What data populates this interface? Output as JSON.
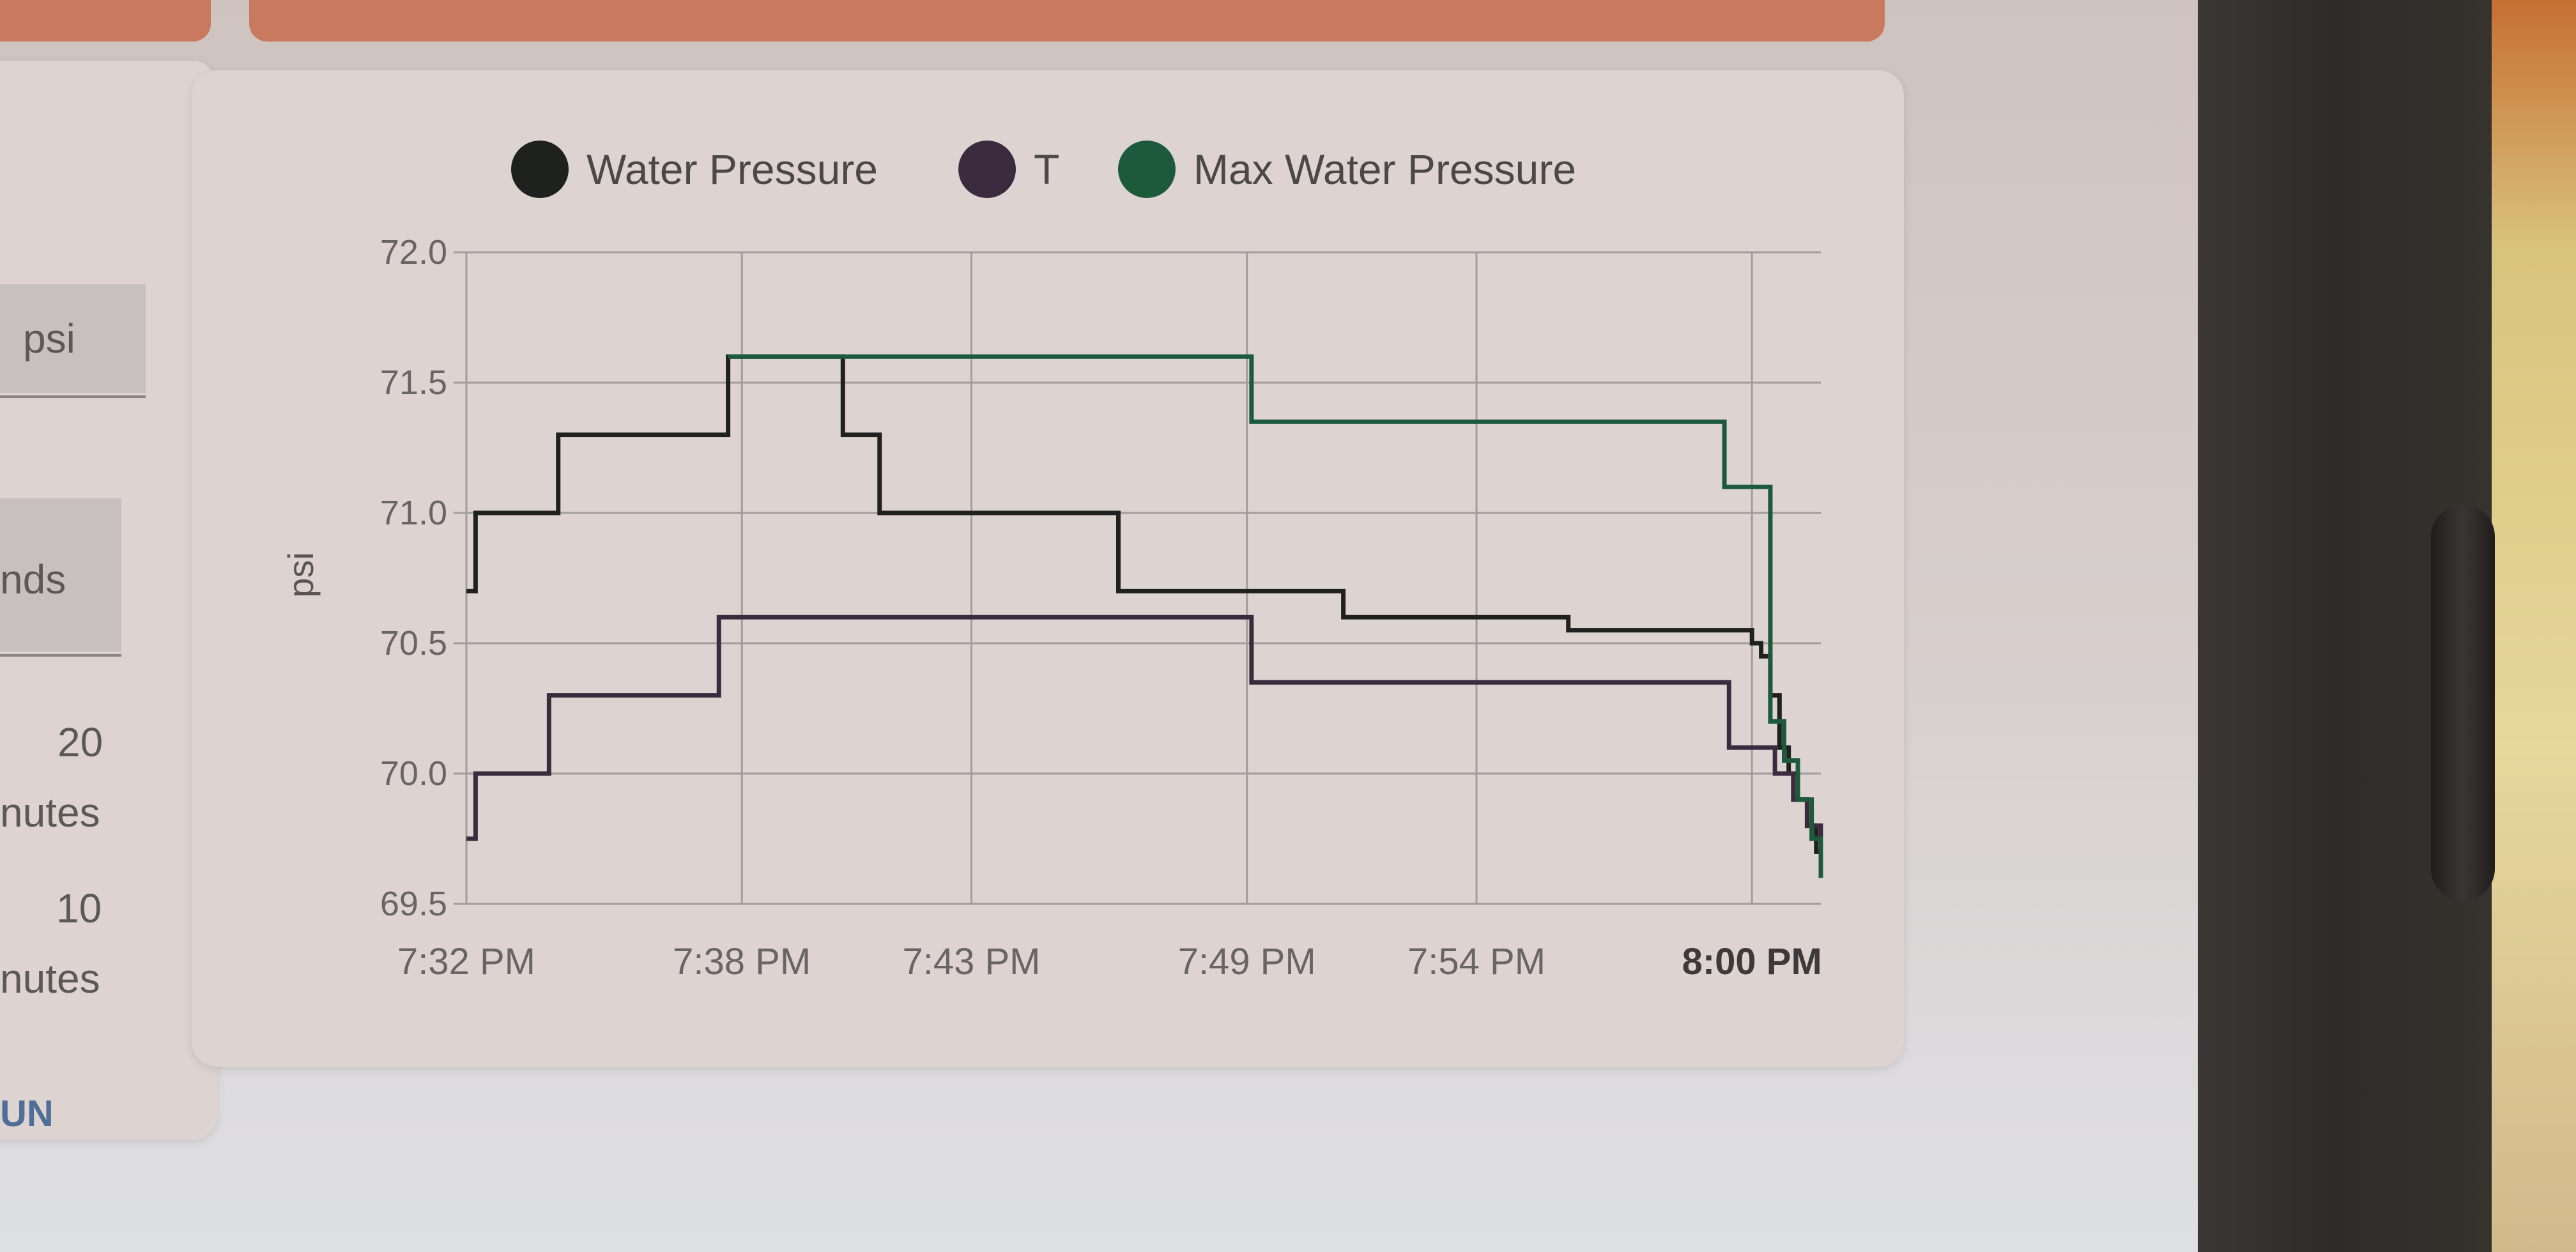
{
  "left_panel": {
    "unit_field": "psi",
    "seconds_field_partial": "nds",
    "option_1_value": "20",
    "option_1_unit_partial": "nutes",
    "option_2_value": "10",
    "option_2_unit_partial": "nutes",
    "run_button_partial": "UN"
  },
  "legend": [
    {
      "label": "Water Pressure",
      "color": "#1f211f"
    },
    {
      "label": "T",
      "color": "#3c2a3e"
    },
    {
      "label": "Max Water Pressure",
      "color": "#1d5a3c"
    }
  ],
  "chart_data": {
    "type": "line",
    "step": true,
    "ylabel": "psi",
    "xlabel": "",
    "y_ticks": [
      "72.0",
      "71.5",
      "71.0",
      "70.5",
      "70.0",
      "69.5"
    ],
    "ylim": [
      69.5,
      72.0
    ],
    "x_ticks": [
      "7:32 PM",
      "7:38 PM",
      "7:43 PM",
      "7:49 PM",
      "7:54 PM",
      "8:00 PM"
    ],
    "x_tick_minutes": [
      0,
      6,
      11,
      17,
      22,
      28
    ],
    "xlim_minutes": [
      0,
      29.5
    ],
    "grid": true,
    "legend_position": "top",
    "series": [
      {
        "name": "Water Pressure",
        "color": "#1f211f",
        "points": [
          [
            0,
            70.7
          ],
          [
            0.2,
            71.0
          ],
          [
            2.0,
            71.3
          ],
          [
            5.7,
            71.6
          ],
          [
            8.2,
            71.3
          ],
          [
            9.0,
            71.0
          ],
          [
            14.2,
            70.7
          ],
          [
            19.1,
            70.6
          ],
          [
            24.0,
            70.55
          ],
          [
            28.0,
            70.5
          ],
          [
            28.2,
            70.45
          ],
          [
            28.4,
            70.3
          ],
          [
            28.6,
            70.1
          ],
          [
            28.8,
            70.0
          ],
          [
            29.0,
            69.9
          ],
          [
            29.2,
            69.8
          ],
          [
            29.4,
            69.7
          ],
          [
            29.5,
            69.6
          ]
        ]
      },
      {
        "name": "T",
        "color": "#3c2a3e",
        "points": [
          [
            0,
            69.75
          ],
          [
            0.2,
            70.0
          ],
          [
            1.8,
            70.3
          ],
          [
            5.5,
            70.6
          ],
          [
            17.1,
            70.35
          ],
          [
            27.5,
            70.1
          ],
          [
            28.5,
            70.0
          ],
          [
            28.9,
            69.9
          ],
          [
            29.2,
            69.8
          ],
          [
            29.5,
            69.65
          ]
        ]
      },
      {
        "name": "Max Water Pressure",
        "color": "#1d5a3c",
        "points": [
          [
            5.7,
            71.6
          ],
          [
            17.1,
            71.35
          ],
          [
            27.4,
            71.1
          ],
          [
            28.4,
            70.2
          ],
          [
            28.7,
            70.05
          ],
          [
            29.0,
            69.9
          ],
          [
            29.3,
            69.75
          ],
          [
            29.5,
            69.6
          ]
        ]
      }
    ]
  }
}
